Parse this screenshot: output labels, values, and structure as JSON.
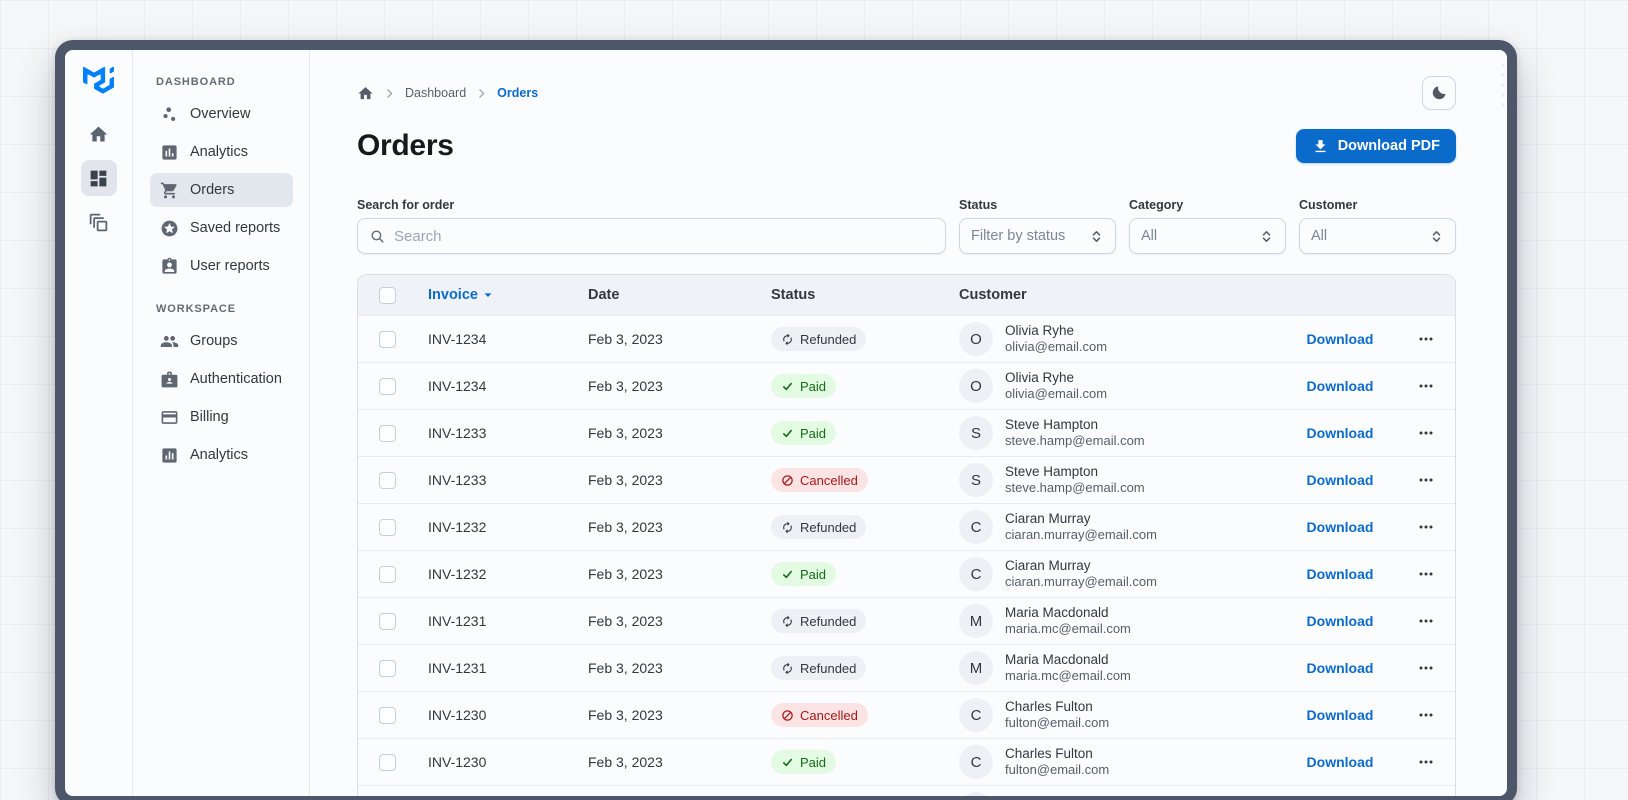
{
  "rail": {
    "logo_icon": "mui-logo-icon",
    "buttons": [
      {
        "icon": "home-icon",
        "selected": false
      },
      {
        "icon": "dashboard-grid-icon",
        "selected": true
      },
      {
        "icon": "layers-icon",
        "selected": false
      }
    ]
  },
  "sidebar": {
    "sections": [
      {
        "title": "DASHBOARD",
        "items": [
          {
            "label": "Overview",
            "icon": "scatter-plot-icon",
            "selected": false
          },
          {
            "label": "Analytics",
            "icon": "bar-chart-square-icon",
            "selected": false
          },
          {
            "label": "Orders",
            "icon": "shopping-cart-icon",
            "selected": true
          },
          {
            "label": "Saved reports",
            "icon": "star-circle-icon",
            "selected": false
          },
          {
            "label": "User reports",
            "icon": "user-badge-icon",
            "selected": false
          }
        ]
      },
      {
        "title": "WORKSPACE",
        "items": [
          {
            "label": "Groups",
            "icon": "groups-icon",
            "selected": false
          },
          {
            "label": "Authentication",
            "icon": "id-badge-icon",
            "selected": false
          },
          {
            "label": "Billing",
            "icon": "credit-card-icon",
            "selected": false
          },
          {
            "label": "Analytics",
            "icon": "chart-box-icon",
            "selected": false
          }
        ]
      }
    ]
  },
  "header": {
    "breadcrumb": {
      "items": [
        "Dashboard",
        "Orders"
      ]
    },
    "title": "Orders",
    "download_button": "Download PDF"
  },
  "filters": {
    "search": {
      "label": "Search for order",
      "placeholder": "Search"
    },
    "selects": [
      {
        "label": "Status",
        "value": "Filter by status"
      },
      {
        "label": "Category",
        "value": "All"
      },
      {
        "label": "Customer",
        "value": "All"
      }
    ]
  },
  "table": {
    "headers": {
      "invoice": "Invoice",
      "date": "Date",
      "status": "Status",
      "customer": "Customer"
    },
    "download_label": "Download",
    "rows": [
      {
        "invoice": "INV-1234",
        "date": "Feb 3, 2023",
        "status": "Refunded",
        "avatar": "O",
        "name": "Olivia Ryhe",
        "email": "olivia@email.com"
      },
      {
        "invoice": "INV-1234",
        "date": "Feb 3, 2023",
        "status": "Paid",
        "avatar": "O",
        "name": "Olivia Ryhe",
        "email": "olivia@email.com"
      },
      {
        "invoice": "INV-1233",
        "date": "Feb 3, 2023",
        "status": "Paid",
        "avatar": "S",
        "name": "Steve Hampton",
        "email": "steve.hamp@email.com"
      },
      {
        "invoice": "INV-1233",
        "date": "Feb 3, 2023",
        "status": "Cancelled",
        "avatar": "S",
        "name": "Steve Hampton",
        "email": "steve.hamp@email.com"
      },
      {
        "invoice": "INV-1232",
        "date": "Feb 3, 2023",
        "status": "Refunded",
        "avatar": "C",
        "name": "Ciaran Murray",
        "email": "ciaran.murray@email.com"
      },
      {
        "invoice": "INV-1232",
        "date": "Feb 3, 2023",
        "status": "Paid",
        "avatar": "C",
        "name": "Ciaran Murray",
        "email": "ciaran.murray@email.com"
      },
      {
        "invoice": "INV-1231",
        "date": "Feb 3, 2023",
        "status": "Refunded",
        "avatar": "M",
        "name": "Maria Macdonald",
        "email": "maria.mc@email.com"
      },
      {
        "invoice": "INV-1231",
        "date": "Feb 3, 2023",
        "status": "Refunded",
        "avatar": "M",
        "name": "Maria Macdonald",
        "email": "maria.mc@email.com"
      },
      {
        "invoice": "INV-1230",
        "date": "Feb 3, 2023",
        "status": "Cancelled",
        "avatar": "C",
        "name": "Charles Fulton",
        "email": "fulton@email.com"
      },
      {
        "invoice": "INV-1230",
        "date": "Feb 3, 2023",
        "status": "Paid",
        "avatar": "C",
        "name": "Charles Fulton",
        "email": "fulton@email.com"
      },
      {
        "invoice": "",
        "date": "",
        "status": "",
        "avatar": "",
        "name": "",
        "email": ""
      }
    ]
  },
  "colors": {
    "primary": "#0B6BCB",
    "frame": "#4E5669",
    "surface": "#FBFCFE",
    "table_header_bg": "#EFF3F7",
    "chip_success_bg": "#E3FBE3",
    "chip_success_text": "#136C13",
    "chip_danger_bg": "#FCE4E4",
    "chip_danger_text": "#A51818",
    "chip_neutral_bg": "#EDF1F6",
    "chip_neutral_text": "#32383E",
    "text_primary": "#171A1C",
    "text_secondary": "#32383E",
    "text_tertiary": "#555E68"
  }
}
